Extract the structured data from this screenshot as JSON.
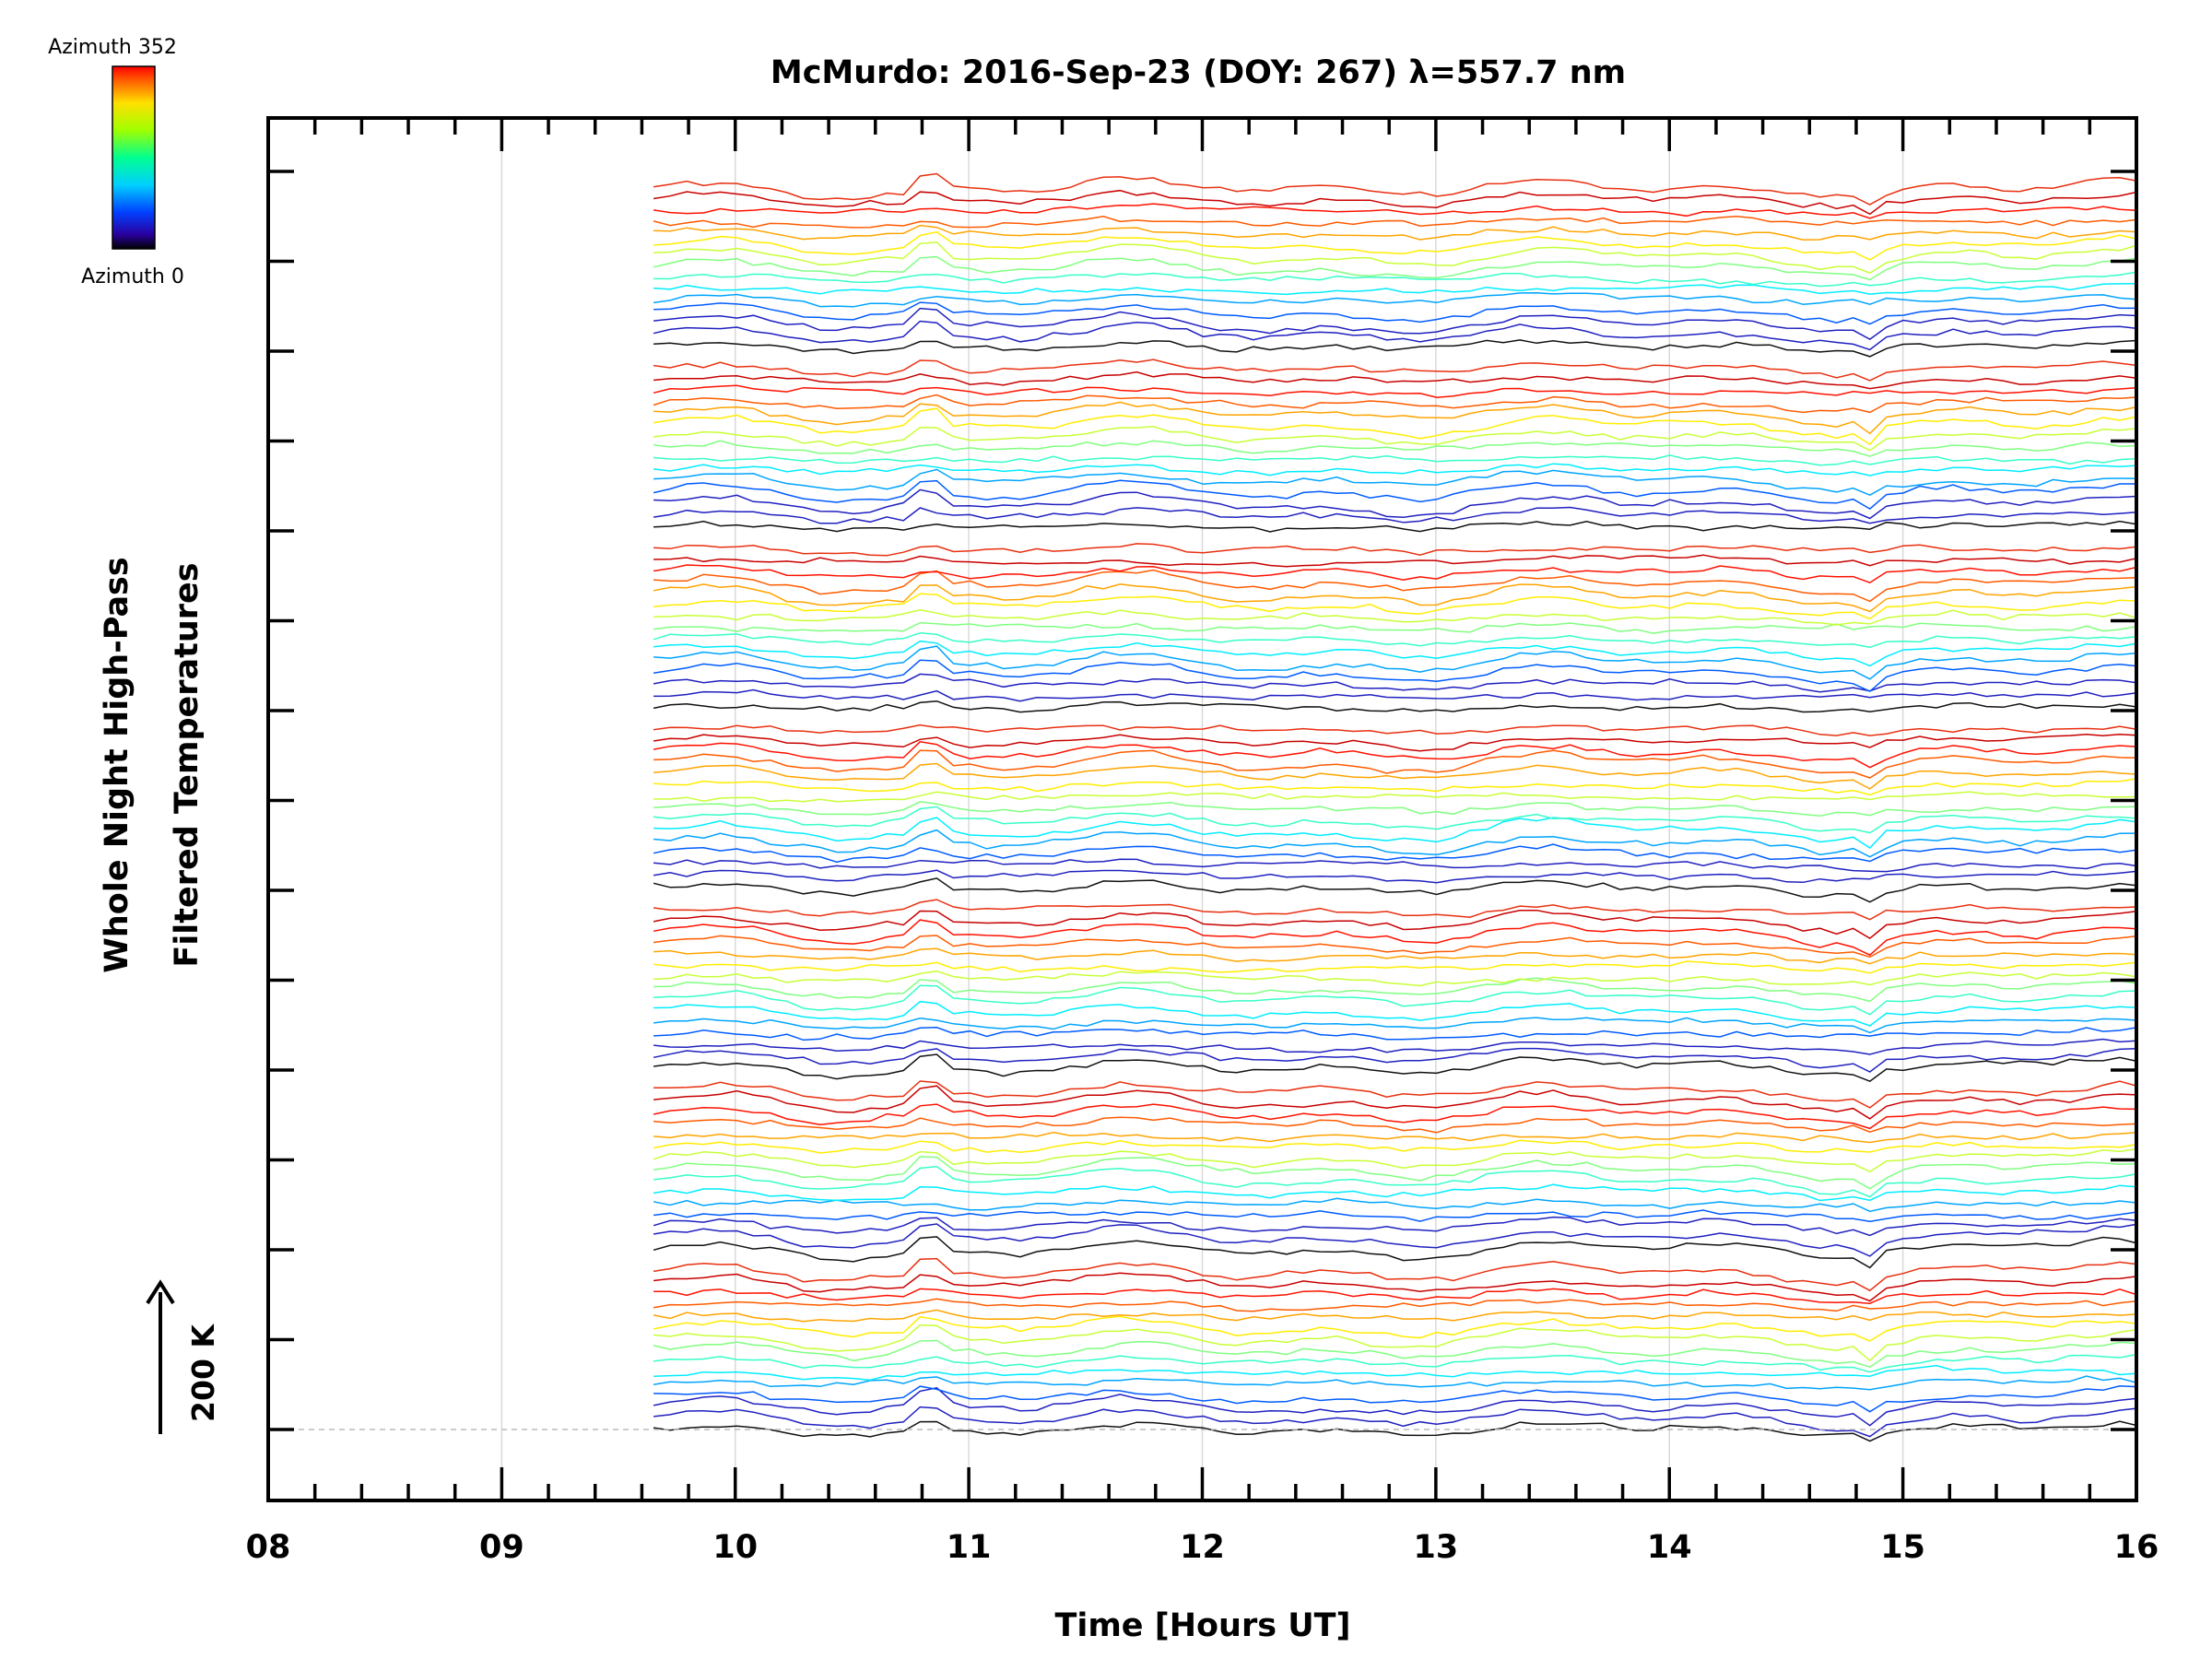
{
  "chart_data": {
    "type": "line",
    "title": "McMurdo: 2016-Sep-23 (DOY: 267) λ=557.7 nm",
    "xlabel": "Time [Hours UT]",
    "ylabel": [
      "Whole Night High-Pass",
      "Filtered Temperatures"
    ],
    "xlim": [
      8,
      16
    ],
    "x_ticks": [
      "08",
      "09",
      "10",
      "11",
      "12",
      "13",
      "14",
      "15",
      "16"
    ],
    "y_ticks_count": 15,
    "grid": "vertical at each hour",
    "data_start_hour": 9.65,
    "data_end_hour": 16,
    "azimuth_min": 0,
    "azimuth_max": 352,
    "num_trace_groups": 7,
    "traces_per_group": 15,
    "series_description": "Stacked offset temperature traces, one per azimuth, colored by azimuth",
    "scale_bar": {
      "label": "200 K",
      "value_K": 200
    },
    "colorbar": {
      "top_label": "Azimuth 352",
      "bottom_label": "Azimuth 0"
    }
  }
}
